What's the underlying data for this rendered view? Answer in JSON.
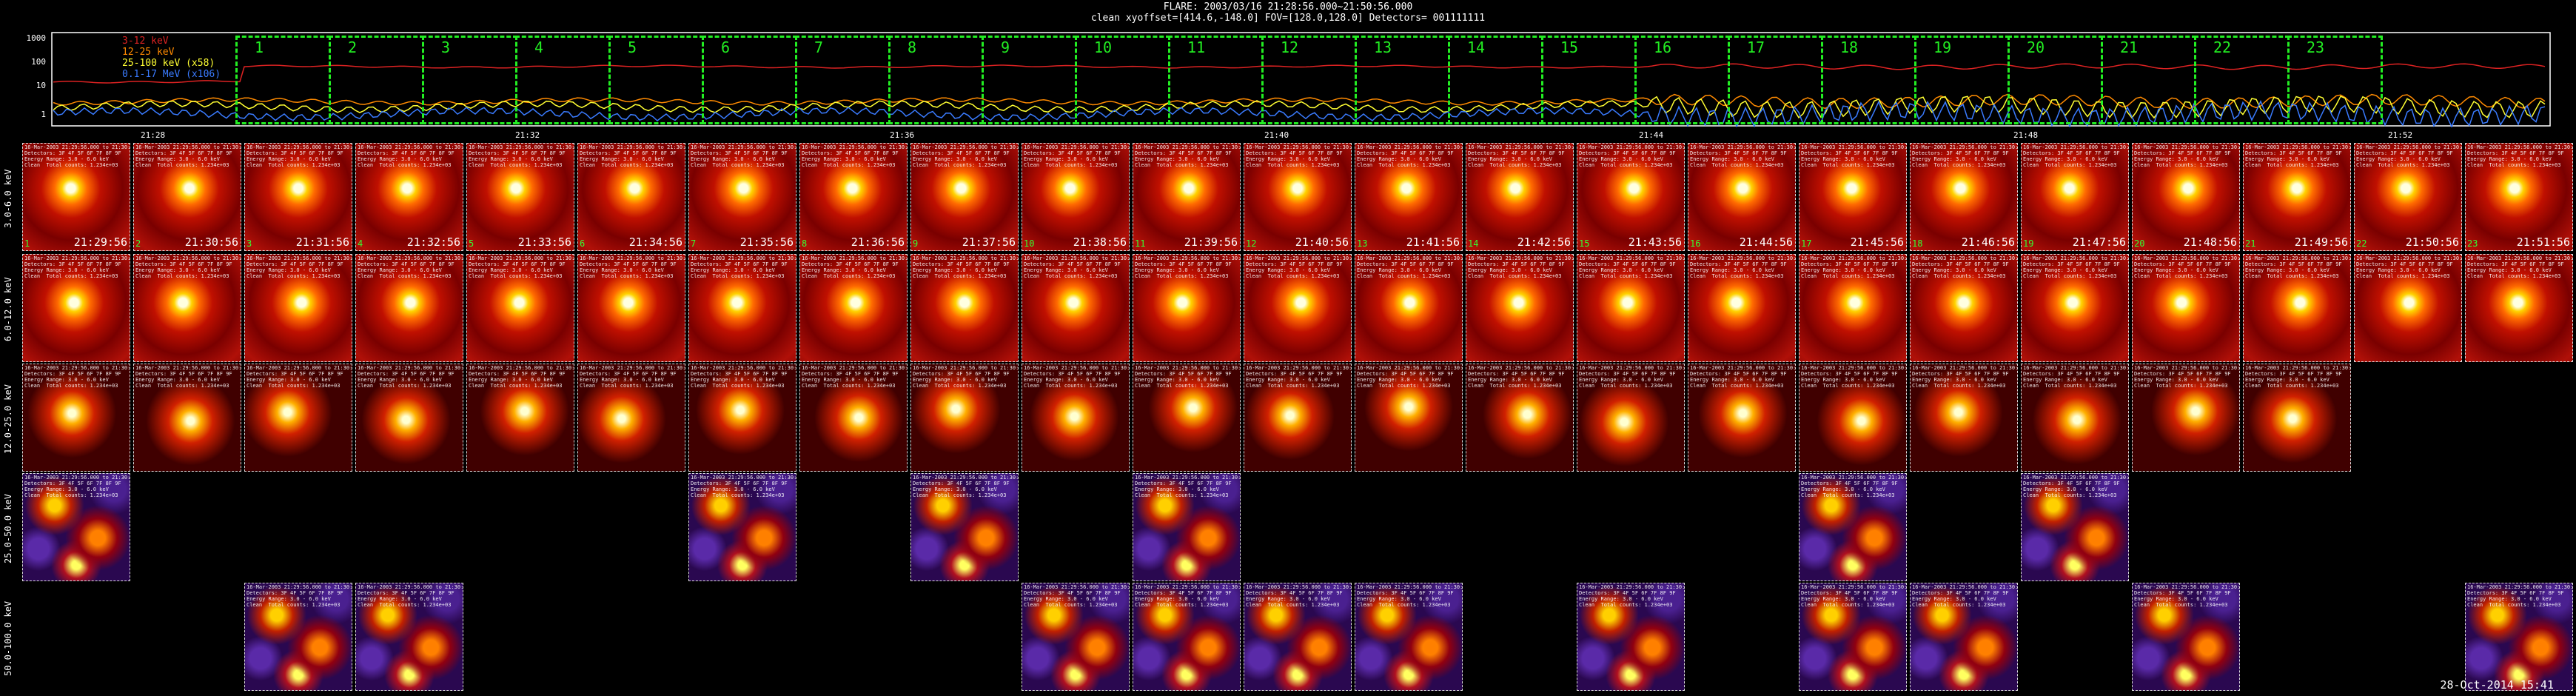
{
  "header": {
    "line1": "FLARE: 2003/03/16 21:28:56.000~21:50:56.000",
    "line2": "clean    xyoffset=[414.6,-148.0]    FOV=[128.0,128.0]    Detectors= 001111111"
  },
  "lightcurve": {
    "y_ticks": [
      "1000",
      "100",
      "10",
      "1"
    ],
    "x_ticks": [
      "21:28",
      "21:32",
      "21:36",
      "21:40",
      "21:44",
      "21:48",
      "21:52"
    ],
    "legend": [
      {
        "label": "3-12 keV",
        "color": "#dd2222"
      },
      {
        "label": "12-25 keV",
        "color": "#ff8a00"
      },
      {
        "label": "25-100 keV (x58)",
        "color": "#ffff33"
      },
      {
        "label": "0.1-17 MeV (x106)",
        "color": "#3a7bff"
      }
    ],
    "intervals": [
      "1",
      "2",
      "3",
      "4",
      "5",
      "6",
      "7",
      "8",
      "9",
      "10",
      "11",
      "12",
      "13",
      "14",
      "15",
      "16",
      "17",
      "18",
      "19",
      "20",
      "21",
      "22",
      "23"
    ]
  },
  "rows": [
    {
      "label": "3.0-6.0 keV",
      "kind": "low"
    },
    {
      "label": "6.0-12.0 keV",
      "kind": "low"
    },
    {
      "label": "12.0-25.0 keV",
      "kind": "mid"
    },
    {
      "label": "25.0-50.0 keV",
      "kind": "high"
    },
    {
      "label": "50.0-100.0 keV",
      "kind": "high"
    }
  ],
  "times": [
    "21:29:56",
    "21:30:56",
    "21:31:56",
    "21:32:56",
    "21:33:56",
    "21:34:56",
    "21:35:56",
    "21:36:56",
    "21:37:56",
    "21:38:56",
    "21:39:56",
    "21:40:56",
    "21:41:56",
    "21:42:56",
    "21:43:56",
    "21:44:56",
    "21:45:56",
    "21:46:56",
    "21:47:56",
    "21:48:56",
    "21:49:56",
    "21:50:56",
    "21:51:56"
  ],
  "panel_info": "16-Mar-2003 21:29:56.000 to 21:30:56\nDetectors: 3F 4F 5F 6F 7F 8F 9F\nEnergy Range: 3.0 - 6.0 keV\nClean  Total counts: 1.234e+03",
  "stamp": "28-Oct-2014 15:41",
  "colors": {
    "background": "#000000",
    "interval_box": "#22ee22"
  }
}
